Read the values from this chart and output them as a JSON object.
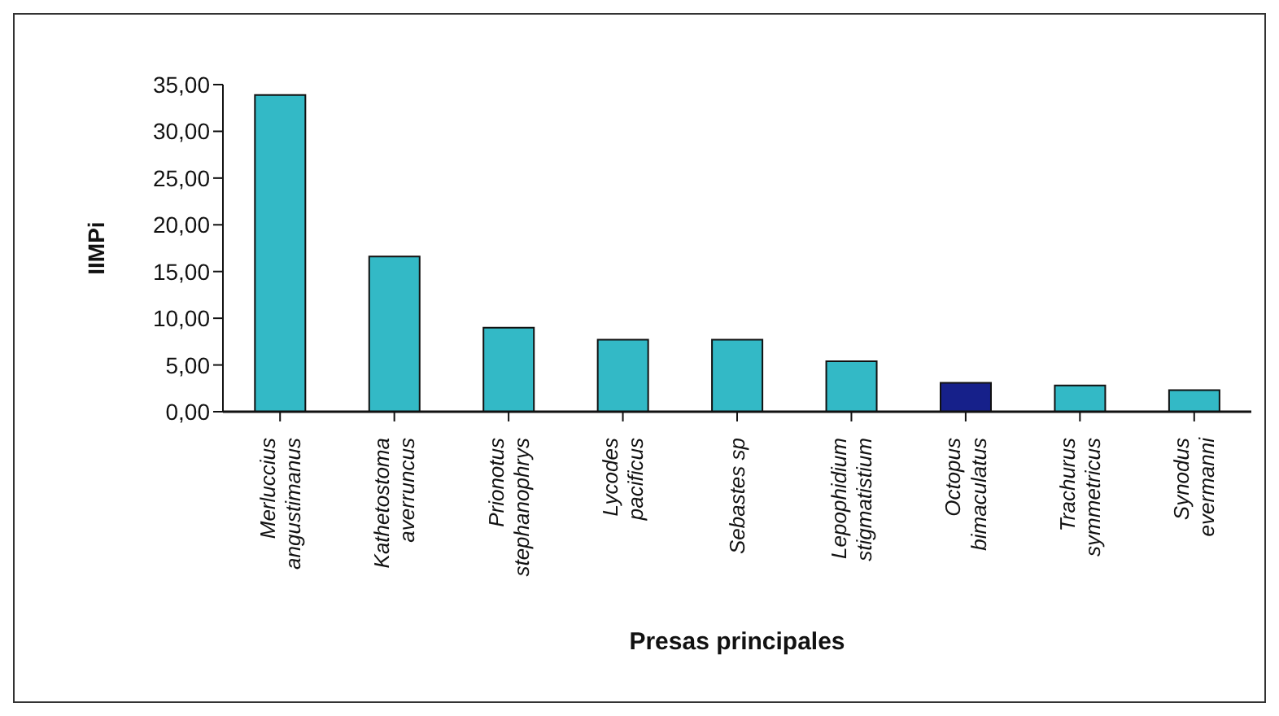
{
  "chart_data": {
    "type": "bar",
    "ylabel": "IIMPi",
    "xlabel": "Presas principales",
    "categories": [
      "Merluccius angustimanus",
      "Kathetostoma averruncus",
      "Prionotus stephanophrys",
      "Lycodes pacificus",
      "Sebastes sp",
      "Lepophidium stigmatistium",
      "Octopus bimaculatus",
      "Trachurus symmetricus",
      "Synodus evermanni"
    ],
    "values": [
      33.9,
      16.6,
      9.0,
      7.7,
      7.7,
      5.4,
      3.1,
      2.8,
      2.3
    ],
    "colors": [
      "#33b9c6",
      "#33b9c6",
      "#33b9c6",
      "#33b9c6",
      "#33b9c6",
      "#33b9c6",
      "#16208a",
      "#33b9c6",
      "#33b9c6"
    ],
    "ylim": [
      0,
      35
    ],
    "yticks": [
      {
        "value": 0,
        "label": "0,00"
      },
      {
        "value": 5,
        "label": "5,00"
      },
      {
        "value": 10,
        "label": "10,00"
      },
      {
        "value": 15,
        "label": "15,00"
      },
      {
        "value": 20,
        "label": "20,00"
      },
      {
        "value": 25,
        "label": "25,00"
      },
      {
        "value": 30,
        "label": "30,00"
      },
      {
        "value": 35,
        "label": "35,00"
      }
    ],
    "grid": false,
    "legend": false
  }
}
